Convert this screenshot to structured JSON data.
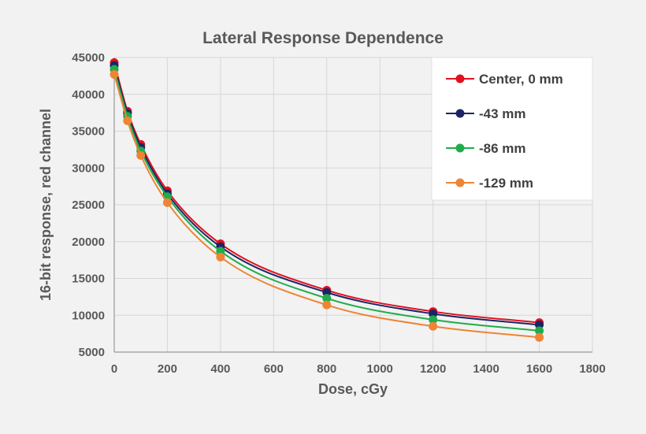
{
  "chart_data": {
    "type": "line",
    "title": "Lateral Response Dependence",
    "xlabel": "Dose, cGy",
    "ylabel": "16-bit response, red channel",
    "xlim": [
      0,
      1800
    ],
    "ylim": [
      5000,
      45000
    ],
    "xticks": [
      0,
      200,
      400,
      600,
      800,
      1000,
      1200,
      1400,
      1600,
      1800
    ],
    "yticks": [
      5000,
      10000,
      15000,
      20000,
      25000,
      30000,
      35000,
      40000,
      45000
    ],
    "grid": true,
    "legend_position": "top-right",
    "x": [
      0,
      50,
      100,
      200,
      400,
      800,
      1200,
      1600
    ],
    "series": [
      {
        "name": "Center, 0 mm",
        "color": "#e3101e",
        "values": [
          44300,
          37700,
          33200,
          26900,
          19700,
          13400,
          10500,
          9000
        ]
      },
      {
        "name": "-43 mm",
        "color": "#1b2566",
        "values": [
          43900,
          37400,
          32800,
          26500,
          19300,
          13100,
          10200,
          8700
        ]
      },
      {
        "name": "-86 mm",
        "color": "#1fad4b",
        "values": [
          43400,
          37000,
          32300,
          26100,
          18700,
          12300,
          9400,
          7900
        ]
      },
      {
        "name": "-129 mm",
        "color": "#ee8434",
        "values": [
          42700,
          36400,
          31700,
          25300,
          17900,
          11400,
          8500,
          7000
        ]
      }
    ]
  }
}
